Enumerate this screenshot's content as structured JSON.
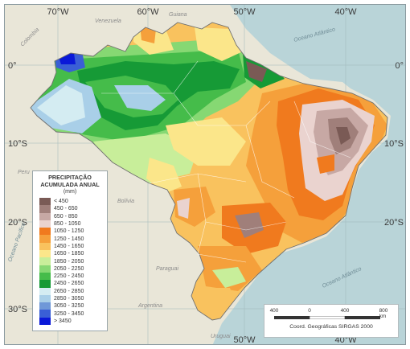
{
  "map": {
    "legend": {
      "title_line1": "PRECIPITAÇÃO",
      "title_line2": "ACUMULADA ANUAL",
      "unit": "(mm)",
      "classes": [
        {
          "label": "< 450",
          "color": "#7a5a55"
        },
        {
          "label": "450 - 650",
          "color": "#a07f7a"
        },
        {
          "label": "650 - 850",
          "color": "#c7a8a4"
        },
        {
          "label": "850 - 1050",
          "color": "#ead3cf"
        },
        {
          "label": "1050 - 1250",
          "color": "#f07a1e"
        },
        {
          "label": "1250 - 1450",
          "color": "#f5a03b"
        },
        {
          "label": "1450 - 1650",
          "color": "#f9c25e"
        },
        {
          "label": "1650 - 1850",
          "color": "#fbe68a"
        },
        {
          "label": "1850 - 2050",
          "color": "#c8ee9a"
        },
        {
          "label": "2050 - 2250",
          "color": "#86d873"
        },
        {
          "label": "2250 - 2450",
          "color": "#45bc4a"
        },
        {
          "label": "2450 - 2650",
          "color": "#169a36"
        },
        {
          "label": "2650 - 2850",
          "color": "#d4ecf2"
        },
        {
          "label": "2850 - 3050",
          "color": "#a9cfe8"
        },
        {
          "label": "3050 - 3250",
          "color": "#6f98d8"
        },
        {
          "label": "3250 - 3450",
          "color": "#3a5fd6"
        },
        {
          "label": "> 3450",
          "color": "#0a19d8"
        }
      ]
    },
    "graticule": {
      "longitudes": [
        "70°W",
        "60°W",
        "50°W",
        "40°W"
      ],
      "latitudes": [
        "0°",
        "10°S",
        "20°S",
        "30°S"
      ]
    },
    "places": {
      "colombia": "Colombia",
      "venezuela": "Venezuela",
      "guiana": "Guiana",
      "peru": "Peru",
      "bolivia": "Bolívia",
      "paraguai": "Paraguai",
      "argentina": "Argentina",
      "uruguai": "Uruguai",
      "ocean_atlantico_n": "Oceano Atlântico",
      "ocean_atlantico_s": "Oceano Atlântico",
      "ocean_pacifico": "Oceano Pacífico"
    },
    "scale": {
      "ticks": [
        "400",
        "0",
        "400",
        "800 km"
      ],
      "caption": "Coord. Geográficas SIRGAS 2000"
    },
    "colors": {
      "background": "#c9dfe0",
      "neighbors": "#e6e3d6",
      "ocean": "#b7d2d6"
    }
  }
}
